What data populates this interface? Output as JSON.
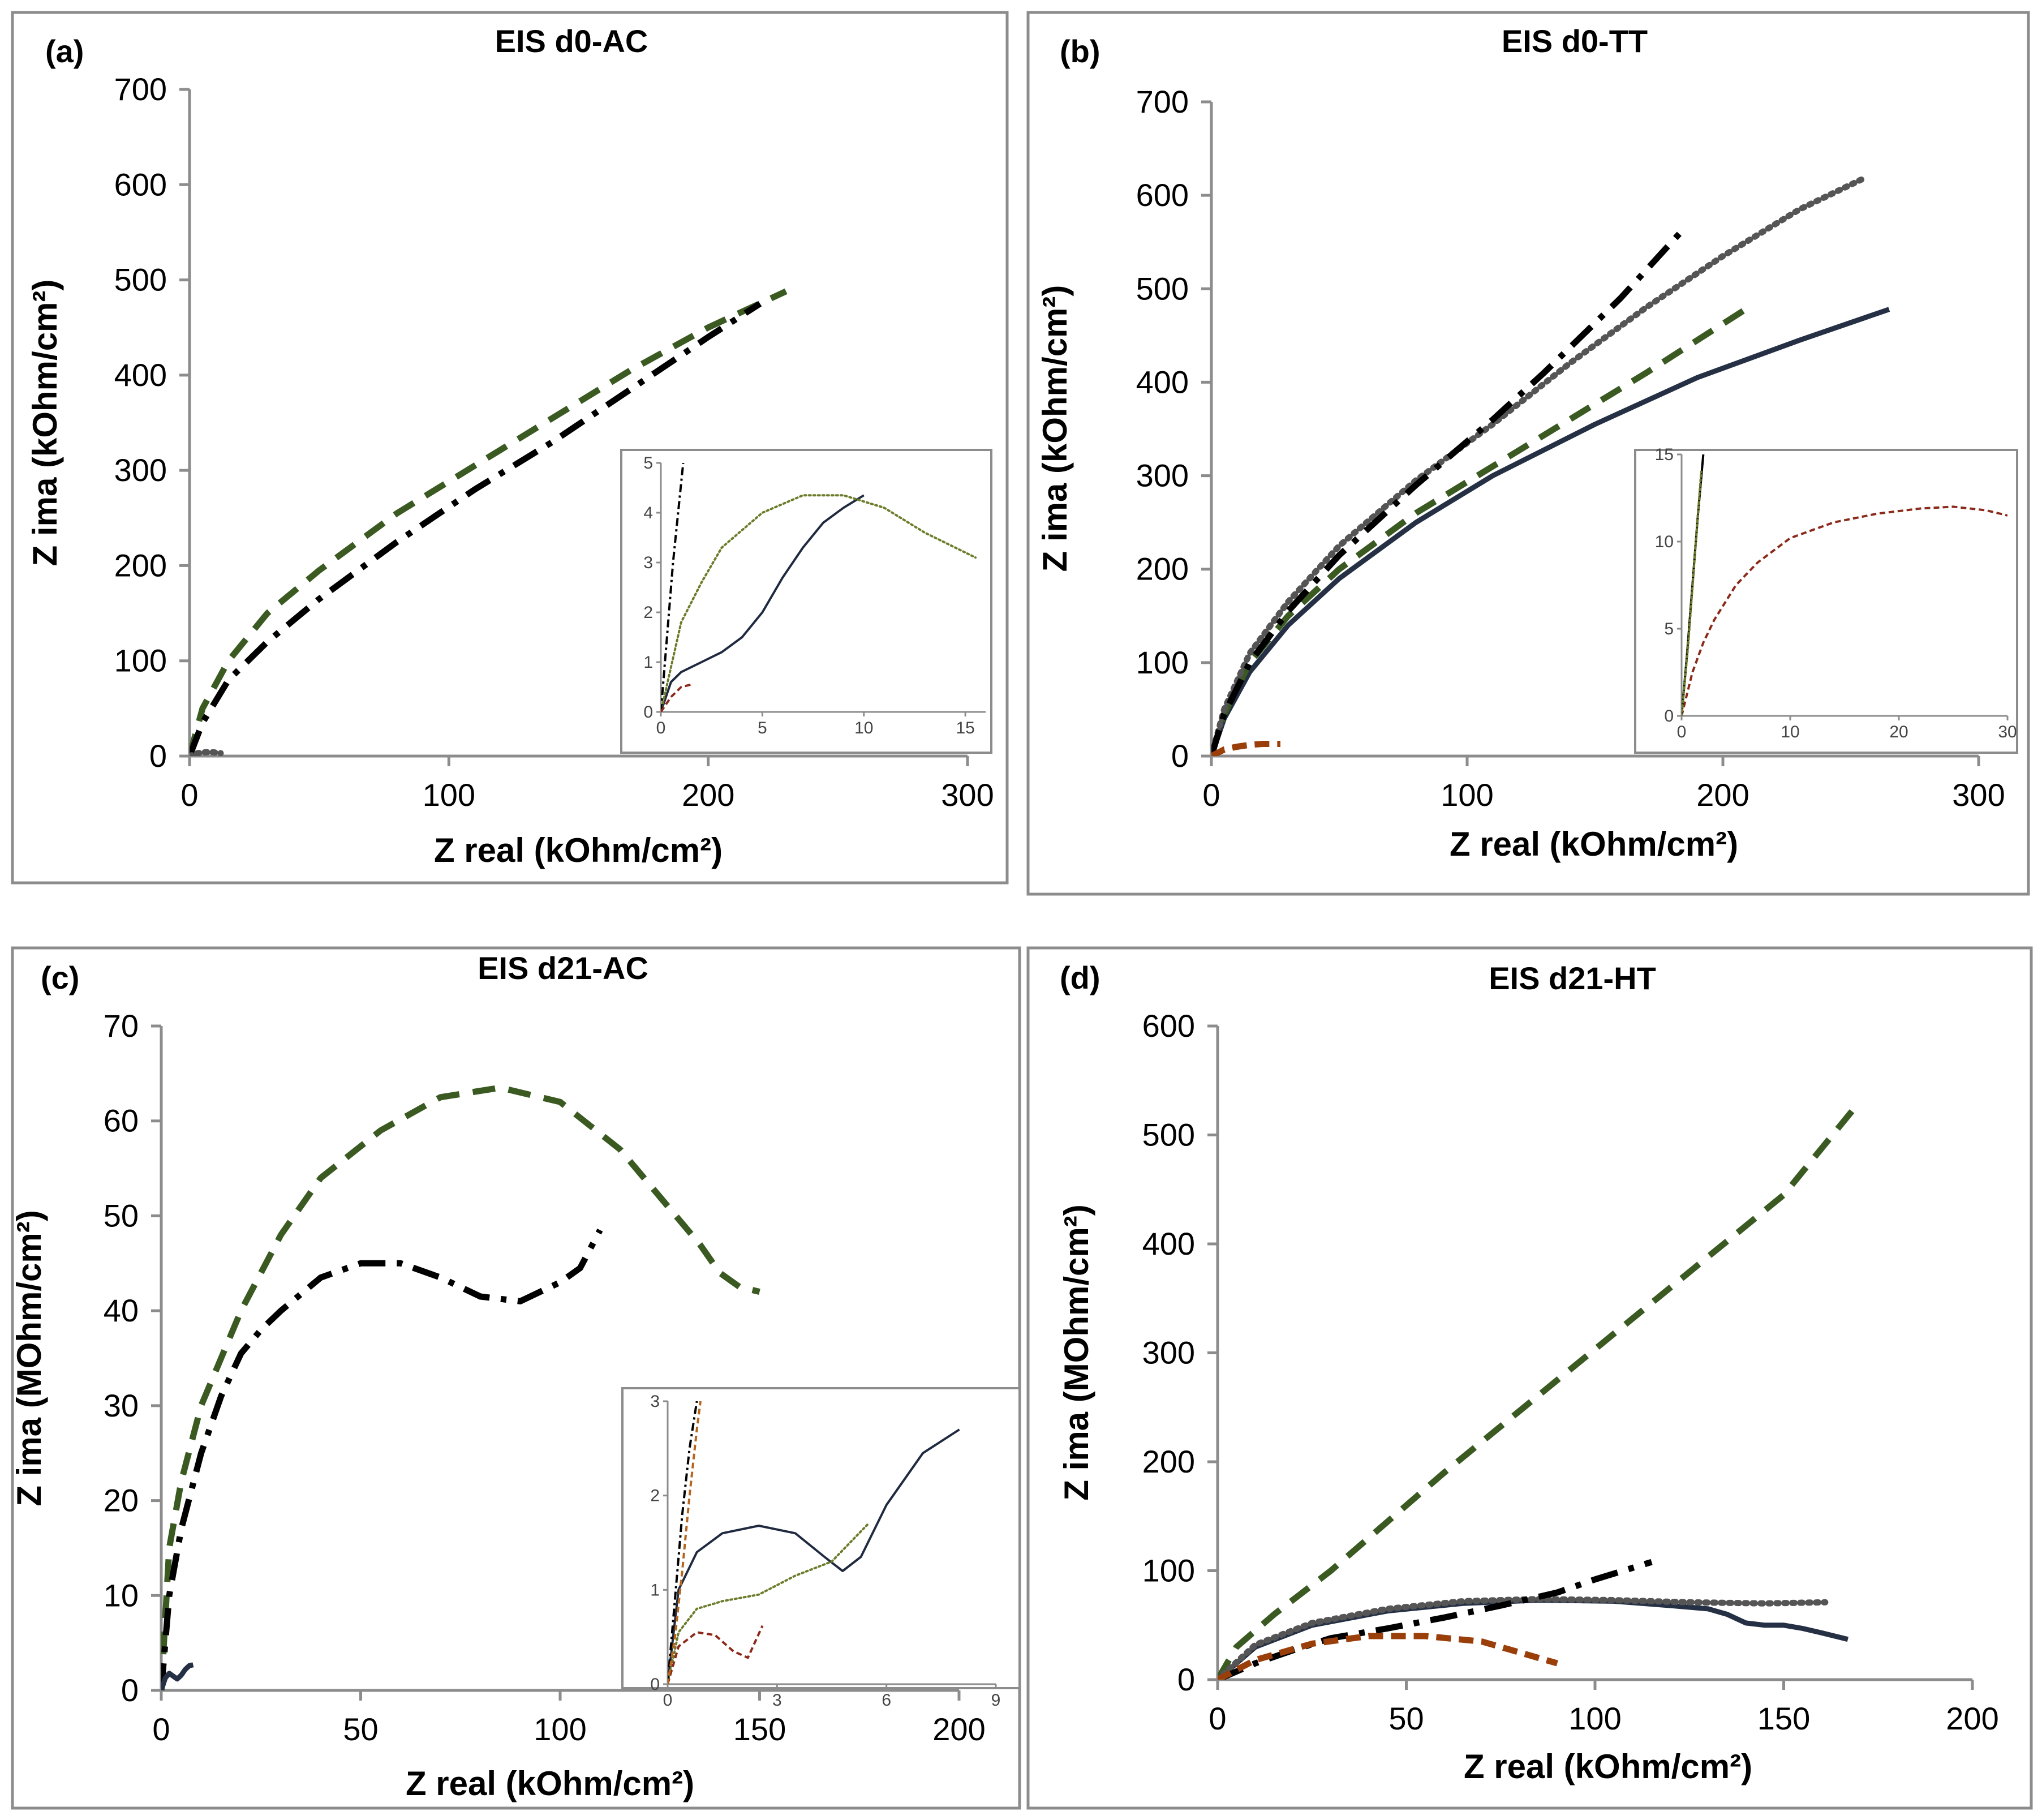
{
  "chart_data": [
    {
      "type": "line",
      "panel_label": "(a)",
      "title": "EIS d0-AC",
      "xlabel": "Z real (kOhm/cm²)",
      "ylabel": "Z ima (kOhm/cm²)",
      "xlim": [
        0,
        300
      ],
      "ylim": [
        0,
        700
      ],
      "xticks": [
        0,
        100,
        200,
        300
      ],
      "yticks": [
        0,
        100,
        200,
        300,
        400,
        500,
        600,
        700
      ],
      "series": [
        {
          "color": "#3a5a22",
          "dash": "long-dash",
          "x": [
            0,
            5,
            15,
            30,
            50,
            80,
            110,
            140,
            170,
            200,
            230
          ],
          "y": [
            0,
            50,
            100,
            150,
            195,
            255,
            305,
            355,
            405,
            450,
            488
          ]
        },
        {
          "color": "#000000",
          "dash": "dash-dot",
          "x": [
            0,
            5,
            15,
            30,
            50,
            80,
            110,
            140,
            170,
            200,
            220
          ],
          "y": [
            0,
            35,
            80,
            120,
            165,
            225,
            280,
            330,
            385,
            440,
            475
          ]
        },
        {
          "color": "#555555",
          "dash": "dotted",
          "x": [
            0,
            3,
            6,
            9,
            12
          ],
          "y": [
            0,
            3,
            4,
            4,
            3
          ]
        }
      ],
      "inset": {
        "xlim": [
          0,
          16
        ],
        "ylim": [
          0,
          5
        ],
        "xticks": [
          0,
          5,
          10,
          15
        ],
        "yticks": [
          0,
          1,
          2,
          3,
          4,
          5
        ],
        "series": [
          {
            "color": "#1f2a40",
            "dash": "solid",
            "x": [
              0,
              0.5,
              1,
              2,
              3,
              4,
              5,
              6,
              7,
              8,
              9,
              10
            ],
            "y": [
              0,
              0.6,
              0.8,
              1.0,
              1.2,
              1.5,
              2.0,
              2.7,
              3.3,
              3.8,
              4.1,
              4.35
            ]
          },
          {
            "color": "#6b7d2a",
            "dash": "dotted",
            "x": [
              0,
              1,
              2,
              3,
              5,
              7,
              9,
              11,
              13,
              14.5,
              15.5
            ],
            "y": [
              0,
              1.8,
              2.6,
              3.3,
              4.0,
              4.35,
              4.35,
              4.1,
              3.6,
              3.3,
              3.1
            ]
          },
          {
            "color": "#000000",
            "dash": "dash-dot",
            "x": [
              0,
              0.3,
              0.6,
              0.9,
              1.1
            ],
            "y": [
              0,
              1.5,
              3.0,
              4.2,
              5.0
            ]
          },
          {
            "color": "#8b2a1a",
            "dash": "dashed",
            "x": [
              0,
              0.5,
              1,
              1.5
            ],
            "y": [
              0,
              0.3,
              0.5,
              0.55
            ]
          }
        ]
      }
    },
    {
      "type": "line",
      "panel_label": "(b)",
      "title": "EIS d0-TT",
      "xlabel": "Z real (kOhm/cm²)",
      "ylabel": "Z ima (kOhm/cm²)",
      "xlim": [
        0,
        300
      ],
      "ylim": [
        0,
        700
      ],
      "xticks": [
        0,
        100,
        200,
        300
      ],
      "yticks": [
        0,
        100,
        200,
        300,
        400,
        500,
        600,
        700
      ],
      "series": [
        {
          "color": "#253045",
          "dash": "solid",
          "x": [
            0,
            5,
            15,
            30,
            50,
            80,
            110,
            150,
            190,
            230,
            265
          ],
          "y": [
            0,
            40,
            90,
            140,
            190,
            250,
            300,
            355,
            405,
            445,
            478
          ]
        },
        {
          "color": "#3a5a22",
          "dash": "long-dash",
          "x": [
            0,
            5,
            15,
            30,
            50,
            80,
            110,
            140,
            170,
            210
          ],
          "y": [
            0,
            45,
            100,
            150,
            200,
            260,
            310,
            360,
            410,
            480
          ]
        },
        {
          "color": "#555555",
          "dash": "dotted",
          "x": [
            0,
            5,
            15,
            30,
            50,
            80,
            110,
            140,
            170,
            200,
            230,
            255
          ],
          "y": [
            0,
            50,
            110,
            165,
            225,
            295,
            355,
            420,
            480,
            535,
            585,
            618
          ]
        },
        {
          "color": "#000000",
          "dash": "dash-dot",
          "x": [
            0,
            5,
            15,
            30,
            50,
            80,
            110,
            130,
            160,
            185
          ],
          "y": [
            0,
            45,
            100,
            155,
            215,
            290,
            360,
            410,
            490,
            565
          ]
        },
        {
          "color": "#9a3e0a",
          "dash": "dashed",
          "x": [
            0,
            5,
            10,
            15,
            20,
            27
          ],
          "y": [
            0,
            7,
            10,
            12,
            13,
            13
          ]
        }
      ],
      "inset": {
        "xlim": [
          0,
          30
        ],
        "ylim": [
          0,
          15
        ],
        "xticks": [
          0,
          10,
          20,
          30
        ],
        "yticks": [
          0,
          5,
          10,
          15
        ],
        "series": [
          {
            "color": "#8b2a1a",
            "dash": "dashed",
            "x": [
              0,
              1,
              2,
              3,
              5,
              7,
              10,
              14,
              18,
              22,
              25,
              28,
              30
            ],
            "y": [
              0,
              2.5,
              4.2,
              5.5,
              7.5,
              8.8,
              10.2,
              11.1,
              11.6,
              11.9,
              12.0,
              11.8,
              11.5
            ]
          },
          {
            "color": "#000000",
            "dash": "solid",
            "x": [
              0,
              0.5,
              1,
              1.5,
              2
            ],
            "y": [
              0,
              3.5,
              7.5,
              11.5,
              15
            ]
          },
          {
            "color": "#6b7d2a",
            "dash": "dotted",
            "x": [
              0,
              0.6,
              1.2,
              1.8
            ],
            "y": [
              0,
              4,
              9,
              14
            ]
          }
        ]
      }
    },
    {
      "type": "line",
      "panel_label": "(c)",
      "title": "EIS d21-AC",
      "xlabel": "Z real (kOhm/cm²)",
      "ylabel": "Z ima (MOhm/cm²)",
      "xlim": [
        0,
        200
      ],
      "ylim": [
        0,
        70
      ],
      "xticks": [
        0,
        50,
        100,
        150,
        200
      ],
      "yticks": [
        0,
        10,
        20,
        30,
        40,
        50,
        60,
        70
      ],
      "series": [
        {
          "color": "#3a5a22",
          "dash": "long-dash",
          "x": [
            0,
            2,
            5,
            10,
            20,
            30,
            40,
            55,
            70,
            85,
            100,
            115,
            125,
            135,
            140,
            145,
            150
          ],
          "y": [
            0,
            15,
            22,
            30,
            40,
            48,
            54,
            59,
            62.5,
            63.5,
            62,
            57,
            52,
            47,
            44,
            42.5,
            42
          ]
        },
        {
          "color": "#000000",
          "dash": "dash-dot",
          "x": [
            0,
            2,
            5,
            10,
            15,
            20,
            25,
            30,
            40,
            50,
            60,
            70,
            80,
            90,
            100,
            105,
            110
          ],
          "y": [
            0,
            10,
            17,
            25,
            31,
            35.5,
            38,
            40,
            43.5,
            45,
            45,
            43.5,
            41.5,
            41,
            43,
            44.5,
            48.5
          ]
        },
        {
          "color": "#253045",
          "dash": "solid",
          "x": [
            0,
            1,
            2,
            3,
            4,
            5,
            6,
            7,
            8
          ],
          "y": [
            0,
            1.3,
            1.8,
            1.5,
            1.2,
            1.6,
            2.2,
            2.6,
            2.7
          ]
        }
      ],
      "inset": {
        "xlim": [
          0,
          9
        ],
        "ylim": [
          0,
          3
        ],
        "xticks": [
          0,
          3,
          6,
          9
        ],
        "yticks": [
          0,
          1,
          2,
          3
        ],
        "series": [
          {
            "color": "#1f2a40",
            "dash": "solid",
            "x": [
              0,
              0.3,
              0.8,
              1.5,
              2.5,
              3.5,
              4.3,
              4.8,
              5.3,
              6,
              7,
              8
            ],
            "y": [
              0,
              1.0,
              1.4,
              1.6,
              1.68,
              1.6,
              1.35,
              1.2,
              1.35,
              1.9,
              2.45,
              2.7
            ]
          },
          {
            "color": "#6b7d2a",
            "dash": "dotted",
            "x": [
              0,
              0.3,
              0.8,
              1.5,
              2.5,
              3.5,
              4.5,
              5.5
            ],
            "y": [
              0,
              0.55,
              0.8,
              0.88,
              0.95,
              1.15,
              1.3,
              1.7
            ]
          },
          {
            "color": "#8b2a1a",
            "dash": "dashed",
            "x": [
              0,
              0.3,
              0.8,
              1.3,
              1.8,
              2.2,
              2.6
            ],
            "y": [
              0,
              0.4,
              0.55,
              0.52,
              0.35,
              0.28,
              0.62
            ]
          },
          {
            "color": "#000000",
            "dash": "dash-dot",
            "x": [
              0,
              0.2,
              0.4,
              0.6,
              0.8
            ],
            "y": [
              0,
              0.9,
              1.8,
              2.5,
              3.0
            ]
          },
          {
            "color": "#b5651d",
            "dash": "dashed",
            "x": [
              0,
              0.2,
              0.4,
              0.6,
              0.8,
              0.9
            ],
            "y": [
              0,
              0.5,
              1.2,
              2.0,
              2.7,
              3.0
            ]
          }
        ]
      }
    },
    {
      "type": "line",
      "panel_label": "(d)",
      "title": "EIS d21-HT",
      "xlabel": "Z real (kOhm/cm²)",
      "ylabel": "Z ima (MOhm/cm²)",
      "xlim": [
        0,
        200
      ],
      "ylim": [
        0,
        600
      ],
      "xticks": [
        0,
        50,
        100,
        150,
        200
      ],
      "yticks": [
        0,
        100,
        200,
        300,
        400,
        500,
        600
      ],
      "series": [
        {
          "color": "#3a5a22",
          "dash": "long-dash",
          "x": [
            0,
            5,
            15,
            30,
            60,
            90,
            120,
            150,
            170
          ],
          "y": [
            0,
            30,
            60,
            100,
            190,
            275,
            360,
            445,
            530
          ]
        },
        {
          "color": "#253045",
          "dash": "solid",
          "x": [
            0,
            10,
            25,
            45,
            65,
            85,
            105,
            120,
            130,
            135,
            140,
            145,
            150,
            155,
            160,
            167
          ],
          "y": [
            0,
            30,
            50,
            63,
            70,
            73,
            72,
            68,
            65,
            60,
            52,
            50,
            50,
            47,
            43,
            37
          ]
        },
        {
          "color": "#555555",
          "dash": "dotted",
          "x": [
            0,
            10,
            25,
            45,
            65,
            85,
            105,
            125,
            145,
            161
          ],
          "y": [
            0,
            32,
            52,
            65,
            72,
            74,
            73,
            71,
            70,
            71
          ]
        },
        {
          "color": "#000000",
          "dash": "dash-dot",
          "x": [
            0,
            10,
            20,
            30,
            45,
            60,
            75,
            90,
            100,
            115
          ],
          "y": [
            0,
            15,
            27,
            38,
            47,
            57,
            68,
            80,
            92,
            108
          ]
        },
        {
          "color": "#9a3e0a",
          "dash": "dashed",
          "x": [
            0,
            10,
            25,
            40,
            55,
            70,
            80,
            90
          ],
          "y": [
            0,
            18,
            33,
            40,
            40,
            35,
            25,
            15
          ]
        }
      ]
    }
  ]
}
